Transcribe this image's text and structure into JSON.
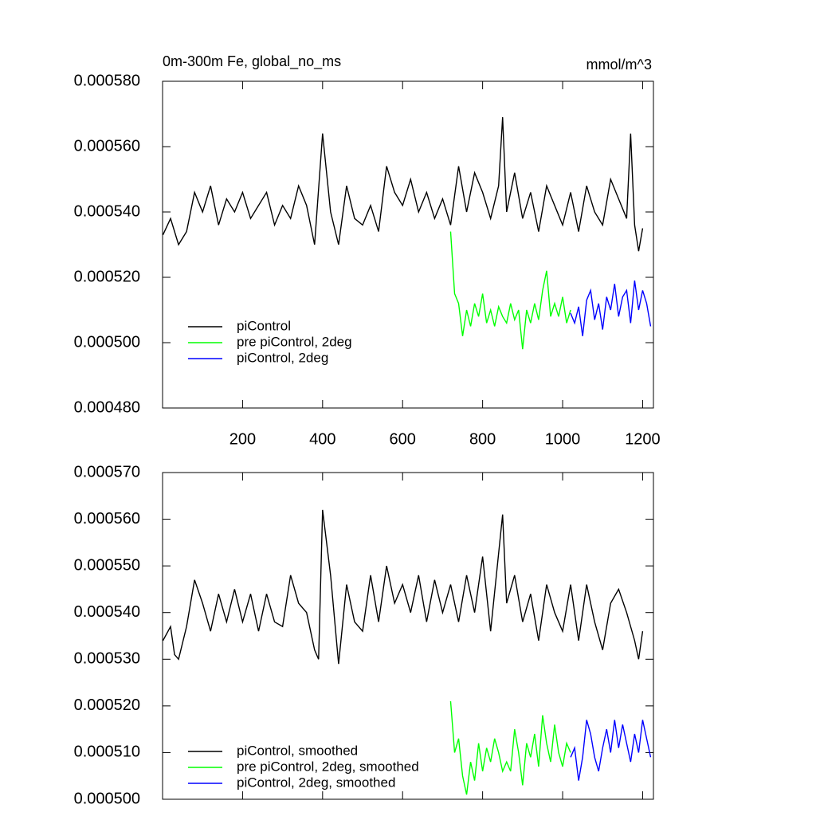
{
  "chart_data": [
    {
      "type": "line",
      "title": "0m-300m Fe, global_no_ms",
      "units_label": "mmol/m^3",
      "xlim": [
        0,
        1227
      ],
      "xticks": [
        200,
        400,
        600,
        800,
        1000,
        1200
      ],
      "show_xtick_labels": true,
      "ylim": [
        0.00048,
        0.00058
      ],
      "yticks": [
        {
          "value": 0.00048,
          "label": "0.000480"
        },
        {
          "value": 0.0005,
          "label": "0.000500"
        },
        {
          "value": 0.00052,
          "label": "0.000520"
        },
        {
          "value": 0.00054,
          "label": "0.000540"
        },
        {
          "value": 0.00056,
          "label": "0.000560"
        },
        {
          "value": 0.00058,
          "label": "0.000580"
        }
      ],
      "legend": "lower left",
      "series": [
        {
          "name": "piControl",
          "color": "#000000",
          "x": [
            1,
            20,
            40,
            60,
            80,
            100,
            120,
            140,
            160,
            180,
            200,
            220,
            240,
            260,
            280,
            300,
            320,
            340,
            360,
            380,
            400,
            420,
            440,
            460,
            480,
            500,
            520,
            540,
            560,
            580,
            600,
            620,
            640,
            660,
            680,
            700,
            720,
            740,
            760,
            780,
            800,
            820,
            840,
            850,
            860,
            880,
            900,
            920,
            940,
            960,
            980,
            1000,
            1020,
            1040,
            1060,
            1080,
            1100,
            1120,
            1140,
            1160,
            1170,
            1180,
            1190,
            1200
          ],
          "values": [
            0.000533,
            0.000538,
            0.00053,
            0.000534,
            0.000546,
            0.00054,
            0.000548,
            0.000536,
            0.000544,
            0.00054,
            0.000546,
            0.000538,
            0.000542,
            0.000546,
            0.000536,
            0.000542,
            0.000538,
            0.000548,
            0.000542,
            0.00053,
            0.000564,
            0.00054,
            0.00053,
            0.000548,
            0.000538,
            0.000536,
            0.000542,
            0.000534,
            0.000554,
            0.000546,
            0.000542,
            0.00055,
            0.00054,
            0.000546,
            0.000538,
            0.000544,
            0.000536,
            0.000554,
            0.00054,
            0.000552,
            0.000546,
            0.000538,
            0.000548,
            0.000569,
            0.00054,
            0.000552,
            0.000538,
            0.000546,
            0.000534,
            0.000548,
            0.000542,
            0.000536,
            0.000546,
            0.000534,
            0.000548,
            0.00054,
            0.000536,
            0.00055,
            0.000544,
            0.000538,
            0.000564,
            0.000536,
            0.000528,
            0.000535
          ]
        },
        {
          "name": "pre piControl, 2deg",
          "color": "#00ff00",
          "x": [
            720,
            730,
            740,
            750,
            760,
            770,
            780,
            790,
            800,
            810,
            820,
            830,
            840,
            850,
            860,
            870,
            880,
            890,
            900,
            910,
            920,
            930,
            940,
            950,
            960,
            970,
            980,
            990,
            1000,
            1010,
            1020
          ],
          "values": [
            0.000534,
            0.000515,
            0.000512,
            0.000502,
            0.00051,
            0.000505,
            0.000512,
            0.000508,
            0.000515,
            0.000506,
            0.00051,
            0.000505,
            0.000511,
            0.000508,
            0.000506,
            0.000512,
            0.000507,
            0.00051,
            0.000498,
            0.00051,
            0.000506,
            0.000512,
            0.000507,
            0.000516,
            0.000522,
            0.000508,
            0.000512,
            0.000508,
            0.000514,
            0.000506,
            0.00051
          ]
        },
        {
          "name": "piControl, 2deg",
          "color": "#0000ff",
          "x": [
            1020,
            1030,
            1040,
            1050,
            1060,
            1070,
            1080,
            1090,
            1100,
            1110,
            1120,
            1130,
            1140,
            1150,
            1160,
            1170,
            1180,
            1190,
            1200,
            1210,
            1220
          ],
          "values": [
            0.000509,
            0.000506,
            0.000511,
            0.000502,
            0.000513,
            0.000516,
            0.000507,
            0.000512,
            0.000504,
            0.000514,
            0.00051,
            0.000518,
            0.000508,
            0.000514,
            0.000516,
            0.000506,
            0.000519,
            0.00051,
            0.000516,
            0.000512,
            0.000505
          ]
        }
      ]
    },
    {
      "type": "line",
      "xlim": [
        0,
        1227
      ],
      "xticks": [
        200,
        400,
        600,
        800,
        1000,
        1200
      ],
      "show_xtick_labels": false,
      "ylim": [
        0.0005,
        0.00057
      ],
      "yticks": [
        {
          "value": 0.0005,
          "label": "0.000500"
        },
        {
          "value": 0.00051,
          "label": "0.000510"
        },
        {
          "value": 0.00052,
          "label": "0.000520"
        },
        {
          "value": 0.00053,
          "label": "0.000530"
        },
        {
          "value": 0.00054,
          "label": "0.000540"
        },
        {
          "value": 0.00055,
          "label": "0.000550"
        },
        {
          "value": 0.00056,
          "label": "0.000560"
        },
        {
          "value": 0.00057,
          "label": "0.000570"
        }
      ],
      "legend": "lower left",
      "series": [
        {
          "name": "piControl, smoothed",
          "color": "#000000",
          "x": [
            1,
            20,
            30,
            40,
            60,
            80,
            100,
            120,
            140,
            160,
            180,
            200,
            220,
            240,
            260,
            280,
            300,
            320,
            340,
            360,
            380,
            390,
            400,
            420,
            440,
            460,
            480,
            500,
            520,
            540,
            560,
            580,
            600,
            620,
            640,
            660,
            680,
            700,
            720,
            740,
            760,
            780,
            800,
            820,
            850,
            860,
            880,
            900,
            920,
            940,
            960,
            980,
            1000,
            1020,
            1040,
            1060,
            1080,
            1100,
            1120,
            1140,
            1160,
            1180,
            1190,
            1200
          ],
          "values": [
            0.000534,
            0.000537,
            0.000531,
            0.00053,
            0.000537,
            0.000547,
            0.000542,
            0.000536,
            0.000544,
            0.000538,
            0.000545,
            0.000538,
            0.000544,
            0.000536,
            0.000544,
            0.000538,
            0.000537,
            0.000548,
            0.000542,
            0.00054,
            0.000532,
            0.00053,
            0.000562,
            0.000548,
            0.000529,
            0.000546,
            0.000538,
            0.000536,
            0.000548,
            0.000538,
            0.00055,
            0.000542,
            0.000546,
            0.00054,
            0.000548,
            0.000538,
            0.000547,
            0.00054,
            0.000546,
            0.000538,
            0.000548,
            0.00054,
            0.000552,
            0.000536,
            0.000561,
            0.000542,
            0.000548,
            0.000538,
            0.000544,
            0.000534,
            0.000546,
            0.00054,
            0.000536,
            0.000546,
            0.000534,
            0.000546,
            0.000538,
            0.000532,
            0.000542,
            0.000545,
            0.00054,
            0.000534,
            0.00053,
            0.000536
          ]
        },
        {
          "name": "pre piControl, 2deg, smoothed",
          "color": "#00ff00",
          "x": [
            720,
            730,
            740,
            750,
            760,
            770,
            780,
            790,
            800,
            810,
            820,
            830,
            840,
            850,
            860,
            870,
            880,
            890,
            900,
            910,
            920,
            930,
            940,
            950,
            960,
            970,
            980,
            990,
            1000,
            1010,
            1020
          ],
          "values": [
            0.000521,
            0.00051,
            0.000513,
            0.000505,
            0.000501,
            0.000508,
            0.000504,
            0.000512,
            0.000506,
            0.000511,
            0.000508,
            0.000513,
            0.00051,
            0.000506,
            0.000508,
            0.000506,
            0.000515,
            0.00051,
            0.000503,
            0.000512,
            0.000509,
            0.000514,
            0.000507,
            0.000518,
            0.000512,
            0.000508,
            0.000516,
            0.00051,
            0.000507,
            0.000512,
            0.00051
          ]
        },
        {
          "name": "piControl, 2deg, smoothed",
          "color": "#0000ff",
          "x": [
            1020,
            1030,
            1040,
            1050,
            1060,
            1070,
            1080,
            1090,
            1100,
            1110,
            1120,
            1130,
            1140,
            1150,
            1160,
            1170,
            1180,
            1190,
            1200,
            1210,
            1220
          ],
          "values": [
            0.000509,
            0.000511,
            0.000504,
            0.000509,
            0.000517,
            0.000514,
            0.000509,
            0.000506,
            0.000511,
            0.000515,
            0.00051,
            0.000517,
            0.000511,
            0.000516,
            0.000512,
            0.000508,
            0.000514,
            0.00051,
            0.000517,
            0.000513,
            0.000509
          ]
        }
      ]
    }
  ]
}
